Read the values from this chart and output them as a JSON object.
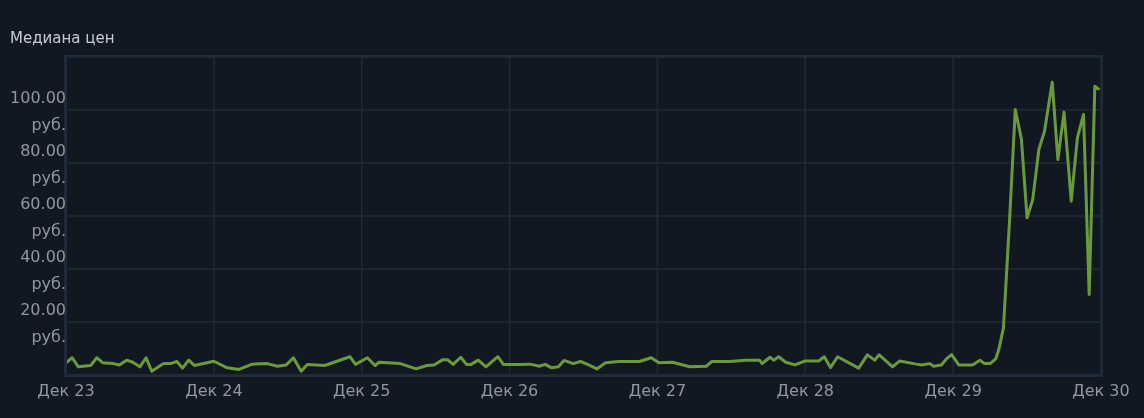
{
  "chart_data": {
    "type": "line",
    "title": "Медиана цен",
    "x": [
      "--12-23T00:00",
      "--12-23T01:00",
      "--12-23T02:00",
      "--12-23T04:00",
      "--12-23T05:00",
      "--12-23T06:00",
      "--12-23T07:40",
      "--12-23T08:40",
      "--12-23T09:50",
      "--12-23T10:50",
      "--12-23T12:00",
      "--12-23T13:00",
      "--12-23T13:55",
      "--12-23T15:50",
      "--12-23T17:00",
      "--12-23T18:00",
      "--12-23T18:55",
      "--12-23T19:55",
      "--12-23T20:50",
      "--12-24T00:00",
      "--12-24T02:10",
      "--12-24T04:05",
      "--12-24T06:15",
      "--12-24T08:40",
      "--12-24T10:20",
      "--12-24T11:45",
      "--12-24T12:55",
      "--12-24T14:10",
      "--12-24T15:10",
      "--12-24T18:00",
      "--12-24T22:05",
      "--12-24T23:00",
      "--12-25T00:55",
      "--12-25T02:10",
      "--12-25T02:50",
      "--12-25T06:15",
      "--12-25T08:50",
      "--12-25T10:35",
      "--12-25T11:45",
      "--12-25T13:10",
      "--12-25T13:55",
      "--12-25T14:50",
      "--12-25T16:05",
      "--12-25T17:00",
      "--12-25T17:45",
      "--12-25T18:55",
      "--12-25T20:10",
      "--12-25T22:05",
      "--12-25T23:00",
      "--12-26T01:40",
      "--12-26T03:20",
      "--12-26T04:50",
      "--12-26T05:45",
      "--12-26T06:50",
      "--12-26T07:55",
      "--12-26T08:50",
      "--12-26T10:20",
      "--12-26T11:30",
      "--12-26T12:40",
      "--12-26T14:10",
      "--12-26T15:35",
      "--12-26T17:45",
      "--12-26T21:05",
      "--12-26T23:00",
      "--12-27T00:15",
      "--12-27T02:25",
      "--12-27T05:15",
      "--12-27T07:55",
      "--12-27T08:50",
      "--12-27T11:45",
      "--12-27T14:25",
      "--12-27T16:35",
      "--12-27T17:00",
      "--12-27T18:15",
      "--12-27T18:55",
      "--12-27T19:40",
      "--12-27T20:50",
      "--12-27T22:20",
      "--12-28T00:00",
      "--12-28T02:10",
      "--12-28T03:05",
      "--12-28T04:05",
      "--12-28T05:15",
      "--12-28T08:40",
      "--12-28T10:05",
      "--12-28T11:15",
      "--12-28T12:00",
      "--12-28T14:10",
      "--12-28T15:20",
      "--12-28T18:00",
      "--12-28T18:55",
      "--12-28T20:10",
      "--12-28T20:50",
      "--12-28T22:05",
      "--12-28T23:00",
      "--12-28T23:45",
      "--12-29T00:55",
      "--12-29T03:10",
      "--12-29T04:20",
      "--12-29T05:05",
      "--12-29T06:00",
      "--12-29T06:55",
      "--12-29T07:25",
      "--12-29T08:10",
      "--12-29T09:10",
      "--12-29T10:05",
      "--12-29T11:05",
      "--12-29T12:00",
      "--12-29T12:55",
      "--12-29T13:55",
      "--12-29T14:50",
      "--12-29T16:05",
      "--12-29T17:00",
      "--12-29T18:00",
      "--12-29T19:10",
      "--12-29T20:10",
      "--12-29T21:10",
      "--12-29T22:05",
      "--12-29T23:00",
      "--12-29T23:45"
    ],
    "series": [
      {
        "color": "#6b9a3d",
        "values": [
          4.6,
          6.5,
          3.1,
          3.6,
          6.5,
          4.6,
          4.3,
          3.8,
          5.6,
          4.8,
          3.1,
          6.5,
          1.4,
          4.3,
          4.3,
          5.1,
          2.6,
          5.6,
          3.6,
          5.2,
          2.7,
          2.1,
          4.1,
          4.3,
          3.3,
          3.8,
          6.5,
          1.4,
          4.0,
          3.6,
          6.9,
          4.0,
          6.5,
          3.6,
          4.8,
          4.3,
          2.3,
          3.6,
          3.8,
          5.8,
          5.8,
          4.0,
          6.7,
          4.0,
          4.0,
          5.6,
          3.1,
          6.9,
          4.0,
          4.0,
          4.1,
          3.3,
          4.0,
          2.7,
          3.1,
          5.5,
          4.3,
          5.1,
          4.0,
          2.3,
          4.6,
          5.1,
          5.1,
          6.5,
          4.6,
          4.8,
          3.1,
          3.3,
          5.1,
          5.1,
          5.6,
          5.6,
          4.3,
          6.7,
          5.6,
          6.9,
          4.8,
          3.8,
          5.3,
          5.3,
          6.9,
          2.8,
          6.9,
          2.6,
          7.6,
          5.6,
          7.6,
          3.1,
          5.3,
          4.1,
          3.8,
          4.3,
          3.3,
          3.8,
          6.3,
          7.7,
          3.8,
          3.8,
          5.6,
          4.3,
          4.3,
          6.1,
          9.6,
          17.8,
          58.7,
          100.2,
          88.9,
          59.3,
          66.2,
          85.1,
          92.0,
          110.5,
          81.3,
          99.2,
          65.6,
          89.5,
          98.3,
          30.4,
          109.0,
          107.7
        ]
      }
    ],
    "xlim": [
      "--12-23",
      "--12-30"
    ],
    "xticks": [
      {
        "value": "--12-23",
        "label": "Дек 23"
      },
      {
        "value": "--12-24",
        "label": "Дек 24"
      },
      {
        "value": "--12-25",
        "label": "Дек 25"
      },
      {
        "value": "--12-26",
        "label": "Дек 26"
      },
      {
        "value": "--12-27",
        "label": "Дек 27"
      },
      {
        "value": "--12-28",
        "label": "Дек 28"
      },
      {
        "value": "--12-29",
        "label": "Дек 29"
      },
      {
        "value": "--12-30",
        "label": "Дек 30"
      }
    ],
    "ylim": [
      0,
      120
    ],
    "yticks": [
      {
        "value": 20,
        "label": "20.00 руб."
      },
      {
        "value": 40,
        "label": "40.00 руб."
      },
      {
        "value": 60,
        "label": "60.00 руб."
      },
      {
        "value": 80,
        "label": "80.00 руб."
      },
      {
        "value": 100,
        "label": "100.00 руб."
      }
    ],
    "grid": true,
    "marker": "none",
    "line_style": "solid"
  }
}
